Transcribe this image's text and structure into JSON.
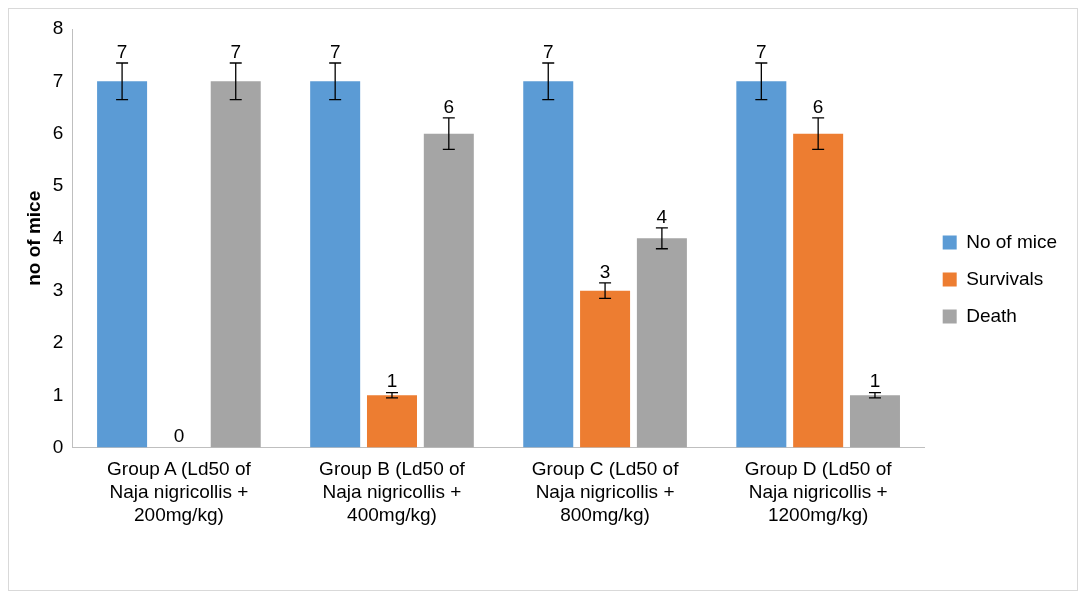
{
  "chart_data": {
    "type": "bar",
    "ylabel": "no of mice",
    "categories": [
      "Group A (Ld50 of Naja nigricollis + 200mg/kg)",
      "Group B (Ld50 of Naja nigricollis + 400mg/kg)",
      "Group C (Ld50 of Naja nigricollis + 800mg/kg)",
      "Group D (Ld50 of Naja nigricollis + 1200mg/kg)"
    ],
    "series": [
      {
        "name": "No of mice",
        "color": "#5b9bd5",
        "values": [
          7,
          7,
          7,
          7
        ],
        "errors": [
          0.35,
          0.35,
          0.35,
          0.35
        ]
      },
      {
        "name": "Survivals",
        "color": "#ed7d31",
        "values": [
          0,
          1,
          3,
          6
        ],
        "errors": [
          null,
          0.05,
          0.15,
          0.3
        ]
      },
      {
        "name": "Death",
        "color": "#a5a5a5",
        "values": [
          7,
          6,
          4,
          1
        ],
        "errors": [
          0.35,
          0.3,
          0.2,
          0.05
        ]
      }
    ],
    "ylim": [
      0,
      8
    ],
    "yticks": [
      0,
      1,
      2,
      3,
      4,
      5,
      6,
      7,
      8
    ],
    "grid": false,
    "legend": "right",
    "data_labels": true
  }
}
